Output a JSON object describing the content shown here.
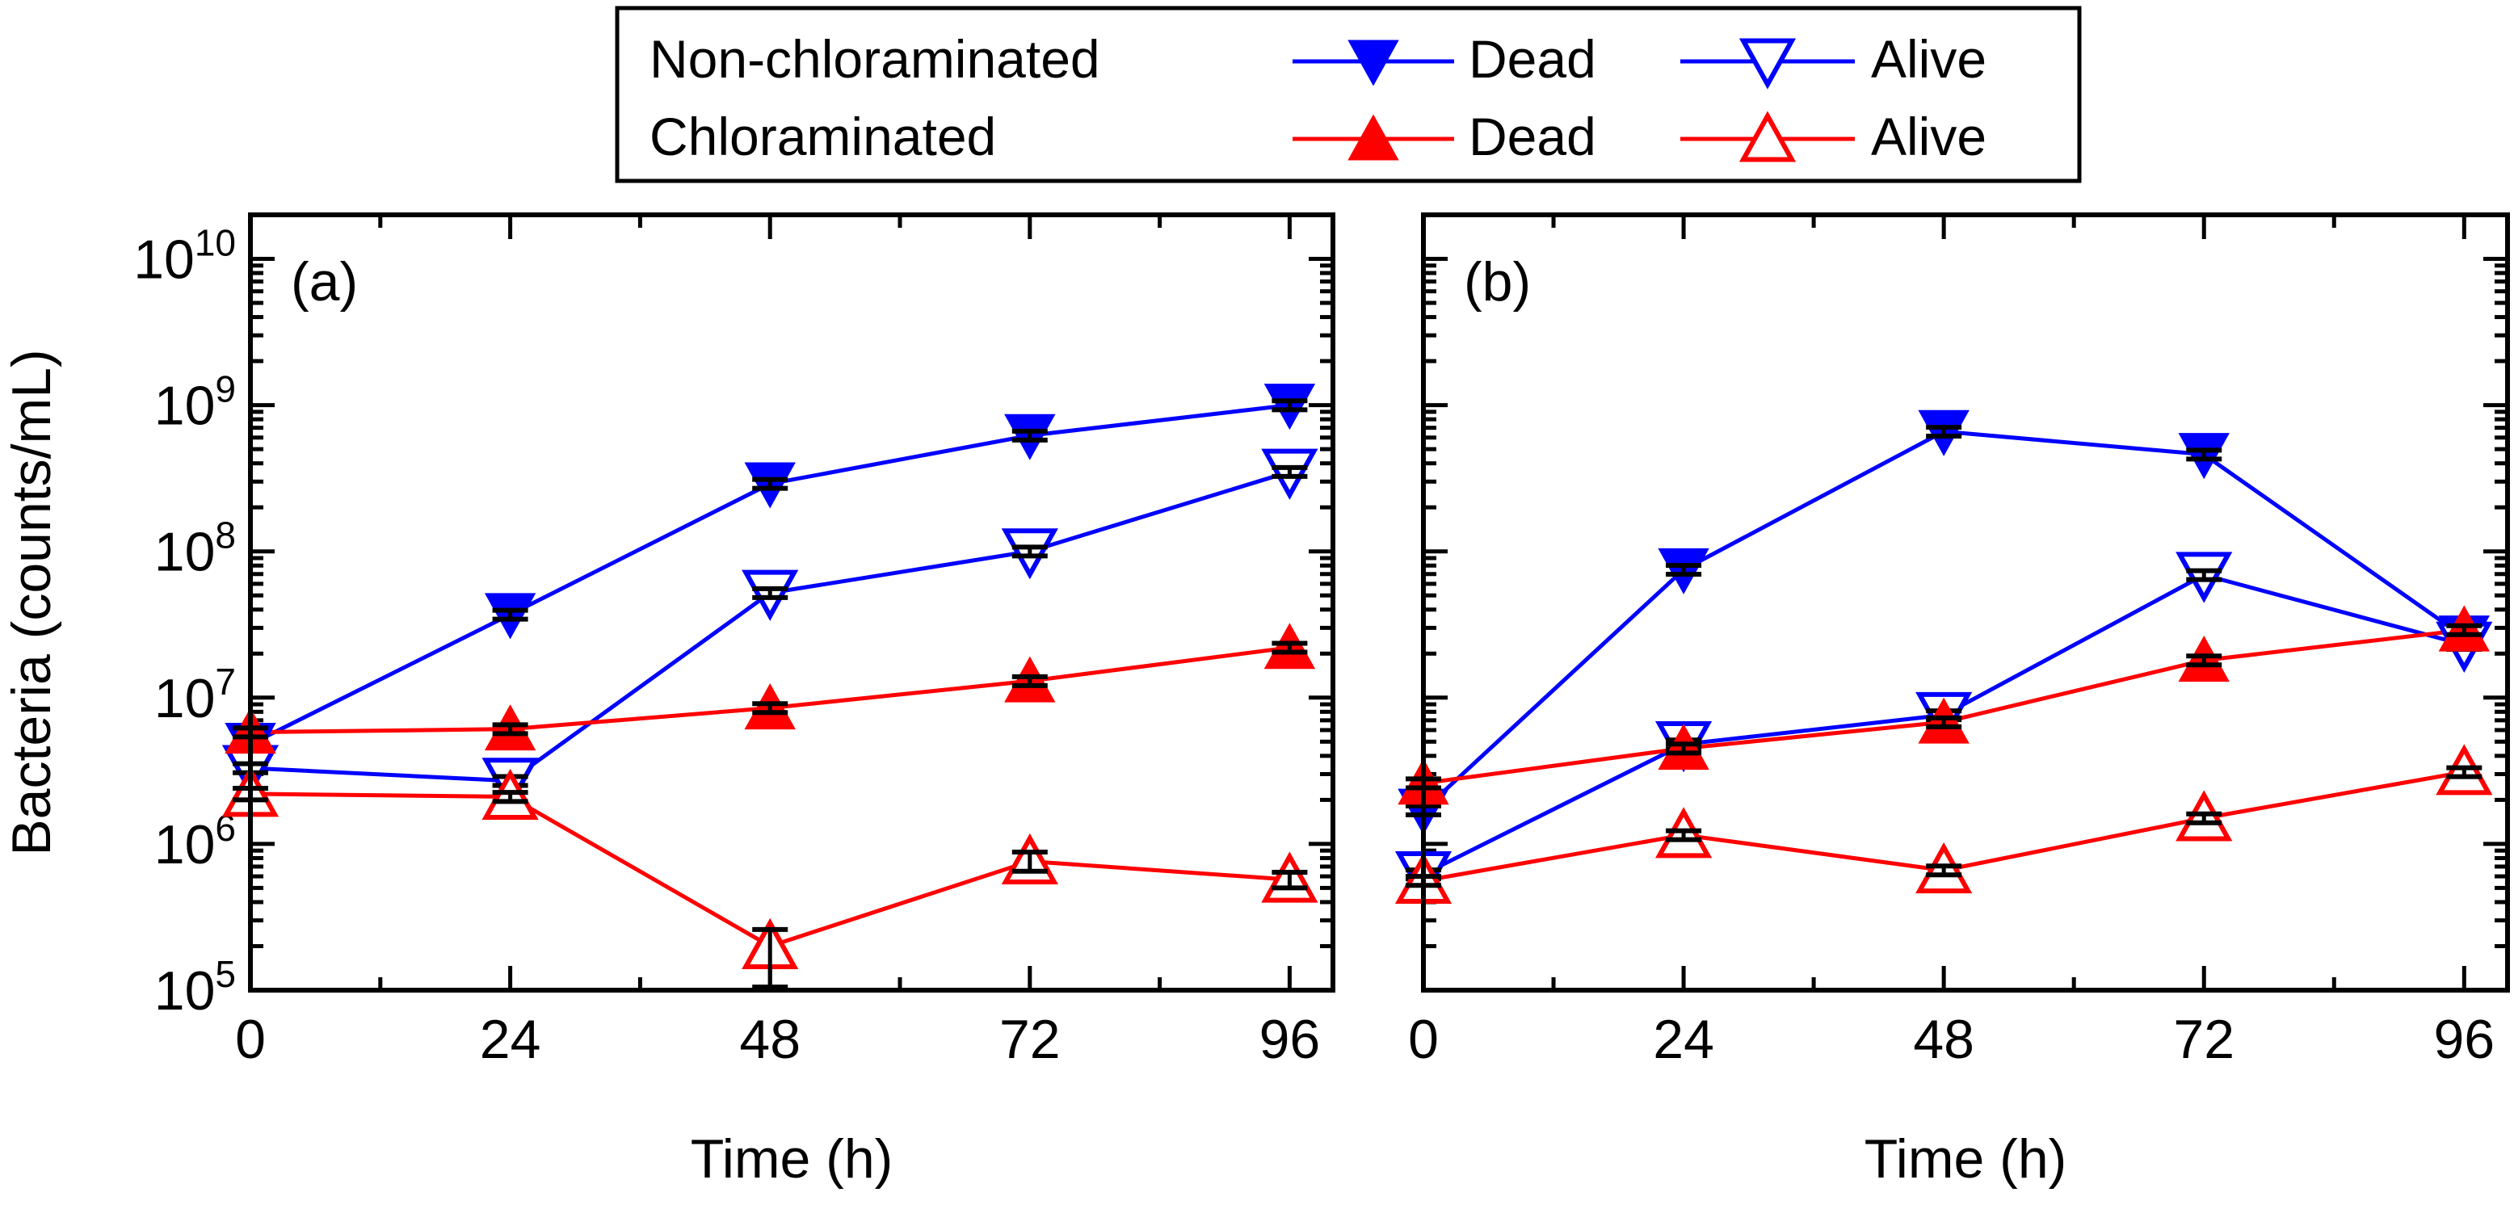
{
  "chart_data": {
    "type": "line",
    "ylabel": "Bacteria (counts/mL)",
    "yscale": "log",
    "ylim": [
      100000,
      20000000000
    ],
    "yticks": [
      100000,
      1000000,
      10000000,
      100000000,
      1000000000,
      10000000000
    ],
    "ytick_labels": [
      {
        "base": "10",
        "exp": "5"
      },
      {
        "base": "10",
        "exp": "6"
      },
      {
        "base": "10",
        "exp": "7"
      },
      {
        "base": "10",
        "exp": "8"
      },
      {
        "base": "10",
        "exp": "9"
      },
      {
        "base": "10",
        "exp": "10"
      }
    ],
    "xlim": [
      0,
      100
    ],
    "xticks": [
      0,
      24,
      48,
      72,
      96
    ],
    "xtick_labels": [
      "0",
      "24",
      "48",
      "72",
      "96"
    ],
    "legend": {
      "placement": "top-center",
      "groups": [
        "Non-chloraminated",
        "Chloraminated"
      ],
      "entries": [
        "Dead",
        "Alive",
        "Dead",
        "Alive"
      ]
    },
    "colors": {
      "non_chloraminated": "#0000ff",
      "chloraminated": "#ff0000",
      "error_bar": "#000000"
    },
    "panels": [
      {
        "label": "(a)",
        "xlabel": "Time (h)",
        "x": [
          0,
          24,
          48,
          72,
          96
        ],
        "series": [
          {
            "name": "Non-chloraminated Dead",
            "group": "non_chloraminated",
            "marker": "down-filled",
            "values": [
              4800000,
              37000000,
              290000000,
              620000000,
              1000000000
            ]
          },
          {
            "name": "Non-chloraminated Alive",
            "group": "non_chloraminated",
            "marker": "down-open",
            "values": [
              3300000,
              2700000,
              52000000,
              100000000,
              350000000
            ]
          },
          {
            "name": "Chloraminated Dead",
            "group": "chloraminated",
            "marker": "up-filled",
            "values": [
              5800000,
              6100000,
              8500000,
              13000000,
              22000000
            ]
          },
          {
            "name": "Chloraminated Alive",
            "group": "chloraminated",
            "marker": "up-open",
            "values": [
              2200000,
              2100000,
              200000,
              760000,
              570000
            ],
            "error_low": [
              2000000,
              1950000,
              105000,
              650000,
              500000
            ],
            "error_high": [
              2400000,
              2250000,
              260000,
              880000,
              640000
            ]
          }
        ]
      },
      {
        "label": "(b)",
        "xlabel": "Time (h)",
        "x": [
          0,
          24,
          48,
          72,
          96
        ],
        "series": [
          {
            "name": "Non-chloraminated Dead",
            "group": "non_chloraminated",
            "marker": "down-filled",
            "values": [
              1700000,
              75000000,
              660000000,
              460000000,
              26000000
            ]
          },
          {
            "name": "Non-chloraminated Alive",
            "group": "non_chloraminated",
            "marker": "down-open",
            "values": [
              620000,
              4800000,
              7600000,
              69000000,
              23000000
            ]
          },
          {
            "name": "Chloraminated Dead",
            "group": "chloraminated",
            "marker": "up-filled",
            "values": [
              2600000,
              4500000,
              6800000,
              18000000,
              29000000
            ]
          },
          {
            "name": "Chloraminated Alive",
            "group": "chloraminated",
            "marker": "up-open",
            "values": [
              560000,
              1150000,
              660000,
              1500000,
              3100000
            ]
          }
        ]
      }
    ]
  }
}
